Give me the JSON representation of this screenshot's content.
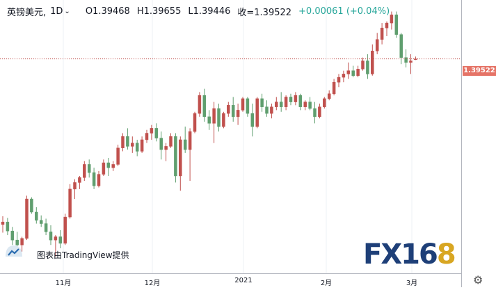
{
  "header": {
    "symbol": "英镑美元,",
    "timeframe": "1D",
    "open": "O1.39468",
    "high": "H1.39655",
    "low": "L1.39446",
    "close": "收=1.39522",
    "change": "+0.00061 (+0.04%)"
  },
  "price_label": "1.39522",
  "credit": "图表由TradingView提供",
  "logo": {
    "fx": "FX",
    "num": "16",
    "eight": "8"
  },
  "icons": {
    "tv": "tradingview-icon",
    "settings": "gear-icon",
    "dropdown": "chevron-down-icon"
  },
  "colors": {
    "up": "#c0504d",
    "down": "#5f9e6e",
    "price_line": "#c0504d",
    "price_tag": "#e57366"
  },
  "chart_data": {
    "type": "candlestick",
    "x_tick_labels": [
      "11月",
      "12月",
      "2021",
      "2月",
      "3月"
    ],
    "last_price": 1.39522,
    "ohlc": [
      [
        1.2945,
        1.2995,
        1.2895,
        1.296
      ],
      [
        1.296,
        1.2985,
        1.288,
        1.2905
      ],
      [
        1.2905,
        1.293,
        1.282,
        1.285
      ],
      [
        1.285,
        1.29,
        1.281,
        1.282
      ],
      [
        1.282,
        1.287,
        1.278,
        1.286
      ],
      [
        1.286,
        1.312,
        1.285,
        1.31
      ],
      [
        1.31,
        1.311,
        1.301,
        1.302
      ],
      [
        1.302,
        1.305,
        1.295,
        1.297
      ],
      [
        1.297,
        1.3,
        1.293,
        1.295
      ],
      [
        1.295,
        1.298,
        1.288,
        1.29
      ],
      [
        1.29,
        1.294,
        1.282,
        1.285
      ],
      [
        1.285,
        1.288,
        1.275,
        1.287
      ],
      [
        1.287,
        1.291,
        1.28,
        1.283
      ],
      [
        1.283,
        1.301,
        1.282,
        1.299
      ],
      [
        1.299,
        1.319,
        1.298,
        1.316
      ],
      [
        1.316,
        1.322,
        1.31,
        1.32
      ],
      [
        1.32,
        1.324,
        1.316,
        1.323
      ],
      [
        1.323,
        1.333,
        1.321,
        1.331
      ],
      [
        1.331,
        1.334,
        1.323,
        1.326
      ],
      [
        1.326,
        1.329,
        1.316,
        1.318
      ],
      [
        1.318,
        1.327,
        1.317,
        1.325
      ],
      [
        1.325,
        1.334,
        1.324,
        1.332
      ],
      [
        1.332,
        1.335,
        1.324,
        1.329
      ],
      [
        1.329,
        1.333,
        1.327,
        1.331
      ],
      [
        1.331,
        1.343,
        1.33,
        1.341
      ],
      [
        1.341,
        1.35,
        1.339,
        1.348
      ],
      [
        1.348,
        1.353,
        1.34,
        1.342
      ],
      [
        1.342,
        1.348,
        1.338,
        1.344
      ],
      [
        1.344,
        1.346,
        1.336,
        1.339
      ],
      [
        1.339,
        1.348,
        1.338,
        1.346
      ],
      [
        1.346,
        1.352,
        1.344,
        1.35
      ],
      [
        1.35,
        1.355,
        1.346,
        1.353
      ],
      [
        1.353,
        1.356,
        1.345,
        1.347
      ],
      [
        1.347,
        1.351,
        1.334,
        1.34
      ],
      [
        1.34,
        1.344,
        1.333,
        1.342
      ],
      [
        1.342,
        1.35,
        1.341,
        1.348
      ],
      [
        1.348,
        1.35,
        1.32,
        1.324
      ],
      [
        1.324,
        1.348,
        1.315,
        1.346
      ],
      [
        1.346,
        1.354,
        1.338,
        1.34
      ],
      [
        1.34,
        1.353,
        1.321,
        1.351
      ],
      [
        1.351,
        1.363,
        1.35,
        1.362
      ],
      [
        1.362,
        1.375,
        1.36,
        1.373
      ],
      [
        1.373,
        1.377,
        1.357,
        1.36
      ],
      [
        1.36,
        1.364,
        1.352,
        1.356
      ],
      [
        1.356,
        1.369,
        1.344,
        1.365
      ],
      [
        1.365,
        1.368,
        1.351,
        1.354
      ],
      [
        1.354,
        1.363,
        1.353,
        1.362
      ],
      [
        1.362,
        1.369,
        1.36,
        1.367
      ],
      [
        1.367,
        1.372,
        1.357,
        1.36
      ],
      [
        1.36,
        1.368,
        1.355,
        1.364
      ],
      [
        1.364,
        1.372,
        1.363,
        1.371
      ],
      [
        1.371,
        1.372,
        1.36,
        1.362
      ],
      [
        1.362,
        1.368,
        1.348,
        1.354
      ],
      [
        1.354,
        1.372,
        1.353,
        1.371
      ],
      [
        1.371,
        1.374,
        1.363,
        1.366
      ],
      [
        1.366,
        1.37,
        1.36,
        1.362
      ],
      [
        1.362,
        1.368,
        1.359,
        1.366
      ],
      [
        1.366,
        1.372,
        1.364,
        1.369
      ],
      [
        1.369,
        1.375,
        1.363,
        1.366
      ],
      [
        1.366,
        1.373,
        1.364,
        1.372
      ],
      [
        1.372,
        1.374,
        1.367,
        1.369
      ],
      [
        1.369,
        1.375,
        1.367,
        1.373
      ],
      [
        1.373,
        1.374,
        1.364,
        1.366
      ],
      [
        1.366,
        1.37,
        1.364,
        1.369
      ],
      [
        1.369,
        1.372,
        1.364,
        1.365
      ],
      [
        1.365,
        1.369,
        1.356,
        1.36
      ],
      [
        1.36,
        1.368,
        1.359,
        1.366
      ],
      [
        1.366,
        1.372,
        1.365,
        1.371
      ],
      [
        1.371,
        1.376,
        1.37,
        1.374
      ],
      [
        1.374,
        1.383,
        1.373,
        1.381
      ],
      [
        1.381,
        1.386,
        1.378,
        1.384
      ],
      [
        1.384,
        1.388,
        1.381,
        1.386
      ],
      [
        1.386,
        1.393,
        1.383,
        1.388
      ],
      [
        1.388,
        1.391,
        1.384,
        1.385
      ],
      [
        1.385,
        1.391,
        1.384,
        1.389
      ],
      [
        1.389,
        1.396,
        1.388,
        1.394
      ],
      [
        1.394,
        1.398,
        1.383,
        1.386
      ],
      [
        1.386,
        1.404,
        1.385,
        1.4
      ],
      [
        1.4,
        1.411,
        1.398,
        1.407
      ],
      [
        1.407,
        1.417,
        1.404,
        1.414
      ],
      [
        1.414,
        1.418,
        1.409,
        1.417
      ],
      [
        1.417,
        1.424,
        1.413,
        1.422
      ],
      [
        1.422,
        1.424,
        1.408,
        1.41
      ],
      [
        1.41,
        1.411,
        1.392,
        1.396
      ],
      [
        1.396,
        1.401,
        1.39,
        1.393
      ],
      [
        1.393,
        1.398,
        1.386,
        1.394
      ],
      [
        1.3947,
        1.3966,
        1.3945,
        1.3952
      ]
    ]
  }
}
